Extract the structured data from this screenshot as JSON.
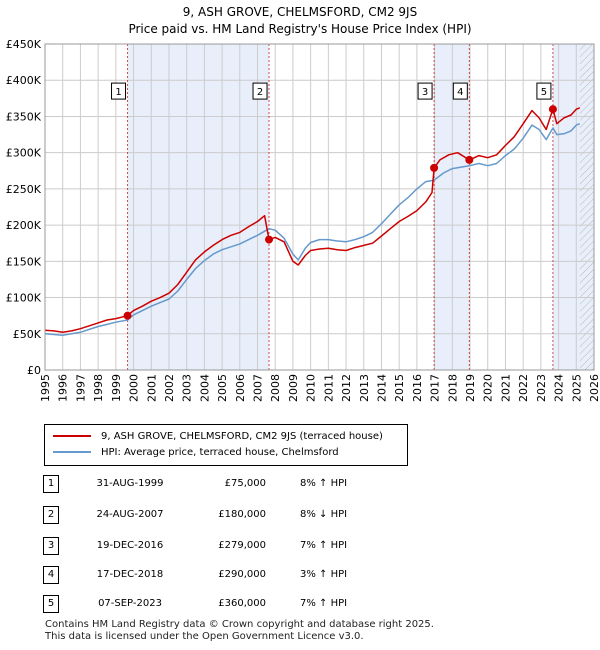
{
  "title_line1": "9, ASH GROVE, CHELMSFORD, CM2 9JS",
  "title_line2": "Price paid vs. HM Land Registry's House Price Index (HPI)",
  "chart_data": {
    "type": "line",
    "xlim": [
      1995,
      2026
    ],
    "ylim": [
      0,
      450000
    ],
    "x_ticks": [
      "1995",
      "1996",
      "1997",
      "1998",
      "1999",
      "2000",
      "2001",
      "2002",
      "2003",
      "2004",
      "2005",
      "2006",
      "2007",
      "2008",
      "2009",
      "2010",
      "2011",
      "2012",
      "2013",
      "2014",
      "2015",
      "2016",
      "2017",
      "2018",
      "2019",
      "2020",
      "2021",
      "2022",
      "2023",
      "2024",
      "2025",
      "2026"
    ],
    "y_ticks": [
      {
        "value": 0,
        "label": "£0"
      },
      {
        "value": 50000,
        "label": "£50K"
      },
      {
        "value": 100000,
        "label": "£100K"
      },
      {
        "value": 150000,
        "label": "£150K"
      },
      {
        "value": 200000,
        "label": "£200K"
      },
      {
        "value": 250000,
        "label": "£250K"
      },
      {
        "value": 300000,
        "label": "£300K"
      },
      {
        "value": 350000,
        "label": "£350K"
      },
      {
        "value": 400000,
        "label": "£400K"
      },
      {
        "value": 450000,
        "label": "£450K"
      }
    ],
    "shaded_ranges": [
      [
        1999.66,
        2007.65
      ],
      [
        2016.97,
        2018.96
      ],
      [
        2023.68,
        2026
      ]
    ],
    "future_hatch_from": 2025.2,
    "series": [
      {
        "name": "9, ASH GROVE, CHELMSFORD, CM2 9JS (terraced house)",
        "color": "#cc0000",
        "points": [
          [
            1995.0,
            55000
          ],
          [
            1995.5,
            54000
          ],
          [
            1996.0,
            52000
          ],
          [
            1996.5,
            54000
          ],
          [
            1997.0,
            57000
          ],
          [
            1997.5,
            61000
          ],
          [
            1998.0,
            65000
          ],
          [
            1998.5,
            69000
          ],
          [
            1999.0,
            71000
          ],
          [
            1999.66,
            75000
          ],
          [
            2000.0,
            82000
          ],
          [
            2000.5,
            88000
          ],
          [
            2001.0,
            95000
          ],
          [
            2001.5,
            100000
          ],
          [
            2002.0,
            106000
          ],
          [
            2002.5,
            118000
          ],
          [
            2003.0,
            135000
          ],
          [
            2003.5,
            152000
          ],
          [
            2004.0,
            163000
          ],
          [
            2004.5,
            172000
          ],
          [
            2005.0,
            180000
          ],
          [
            2005.5,
            186000
          ],
          [
            2006.0,
            190000
          ],
          [
            2006.5,
            198000
          ],
          [
            2007.0,
            205000
          ],
          [
            2007.4,
            213000
          ],
          [
            2007.65,
            180000
          ],
          [
            2008.0,
            183000
          ],
          [
            2008.5,
            177000
          ],
          [
            2009.0,
            150000
          ],
          [
            2009.3,
            145000
          ],
          [
            2009.7,
            158000
          ],
          [
            2010.0,
            165000
          ],
          [
            2010.5,
            167000
          ],
          [
            2011.0,
            168000
          ],
          [
            2011.5,
            166000
          ],
          [
            2012.0,
            165000
          ],
          [
            2012.5,
            169000
          ],
          [
            2013.0,
            172000
          ],
          [
            2013.5,
            175000
          ],
          [
            2014.0,
            185000
          ],
          [
            2014.5,
            195000
          ],
          [
            2015.0,
            205000
          ],
          [
            2015.5,
            212000
          ],
          [
            2016.0,
            220000
          ],
          [
            2016.5,
            232000
          ],
          [
            2016.85,
            245000
          ],
          [
            2016.97,
            279000
          ],
          [
            2017.3,
            290000
          ],
          [
            2017.8,
            297000
          ],
          [
            2018.3,
            300000
          ],
          [
            2018.96,
            290000
          ],
          [
            2019.5,
            296000
          ],
          [
            2020.0,
            293000
          ],
          [
            2020.5,
            297000
          ],
          [
            2021.0,
            310000
          ],
          [
            2021.5,
            322000
          ],
          [
            2022.0,
            340000
          ],
          [
            2022.5,
            358000
          ],
          [
            2022.9,
            348000
          ],
          [
            2023.3,
            332000
          ],
          [
            2023.68,
            360000
          ],
          [
            2023.9,
            340000
          ],
          [
            2024.3,
            348000
          ],
          [
            2024.7,
            352000
          ],
          [
            2025.0,
            360000
          ],
          [
            2025.2,
            362000
          ]
        ]
      },
      {
        "name": "HPI: Average price, terraced house, Chelmsford",
        "color": "#6699cc",
        "points": [
          [
            1995.0,
            50000
          ],
          [
            1995.5,
            49000
          ],
          [
            1996.0,
            48000
          ],
          [
            1996.5,
            50000
          ],
          [
            1997.0,
            52000
          ],
          [
            1997.5,
            56000
          ],
          [
            1998.0,
            60000
          ],
          [
            1998.5,
            63000
          ],
          [
            1999.0,
            66000
          ],
          [
            1999.66,
            69000
          ],
          [
            2000.0,
            76000
          ],
          [
            2000.5,
            82000
          ],
          [
            2001.0,
            88000
          ],
          [
            2001.5,
            93000
          ],
          [
            2002.0,
            98000
          ],
          [
            2002.5,
            109000
          ],
          [
            2003.0,
            125000
          ],
          [
            2003.5,
            140000
          ],
          [
            2004.0,
            151000
          ],
          [
            2004.5,
            160000
          ],
          [
            2005.0,
            166000
          ],
          [
            2005.5,
            170000
          ],
          [
            2006.0,
            174000
          ],
          [
            2006.5,
            180000
          ],
          [
            2007.0,
            186000
          ],
          [
            2007.65,
            195000
          ],
          [
            2008.0,
            193000
          ],
          [
            2008.5,
            182000
          ],
          [
            2009.0,
            160000
          ],
          [
            2009.3,
            152000
          ],
          [
            2009.7,
            168000
          ],
          [
            2010.0,
            176000
          ],
          [
            2010.5,
            180000
          ],
          [
            2011.0,
            180000
          ],
          [
            2011.5,
            178000
          ],
          [
            2012.0,
            177000
          ],
          [
            2012.5,
            180000
          ],
          [
            2013.0,
            184000
          ],
          [
            2013.5,
            190000
          ],
          [
            2014.0,
            202000
          ],
          [
            2014.5,
            215000
          ],
          [
            2015.0,
            228000
          ],
          [
            2015.5,
            238000
          ],
          [
            2016.0,
            250000
          ],
          [
            2016.5,
            260000
          ],
          [
            2016.97,
            262000
          ],
          [
            2017.5,
            272000
          ],
          [
            2018.0,
            278000
          ],
          [
            2018.96,
            282000
          ],
          [
            2019.5,
            285000
          ],
          [
            2020.0,
            282000
          ],
          [
            2020.5,
            285000
          ],
          [
            2021.0,
            296000
          ],
          [
            2021.5,
            305000
          ],
          [
            2022.0,
            320000
          ],
          [
            2022.5,
            338000
          ],
          [
            2022.9,
            332000
          ],
          [
            2023.3,
            318000
          ],
          [
            2023.68,
            334000
          ],
          [
            2023.9,
            325000
          ],
          [
            2024.3,
            326000
          ],
          [
            2024.7,
            330000
          ],
          [
            2025.0,
            338000
          ],
          [
            2025.2,
            340000
          ]
        ]
      }
    ],
    "markers": [
      {
        "label": "1",
        "x": 1999.66,
        "y": 75000
      },
      {
        "label": "2",
        "x": 2007.65,
        "y": 180000
      },
      {
        "label": "3",
        "x": 2016.97,
        "y": 279000
      },
      {
        "label": "4",
        "x": 2018.96,
        "y": 290000
      },
      {
        "label": "5",
        "x": 2023.68,
        "y": 360000
      }
    ],
    "marker_box_value": 385000,
    "marker_color": "#cc0000",
    "shade_color": "#e8eefa",
    "grid_color": "#cccccc"
  },
  "legend": {
    "items": [
      {
        "label": "9, ASH GROVE, CHELMSFORD, CM2 9JS (terraced house)",
        "color": "#cc0000"
      },
      {
        "label": "HPI: Average price, terraced house, Chelmsford",
        "color": "#6699cc"
      }
    ]
  },
  "sales": [
    {
      "num": "1",
      "date": "31-AUG-1999",
      "price": "£75,000",
      "hpi": "8% ↑ HPI"
    },
    {
      "num": "2",
      "date": "24-AUG-2007",
      "price": "£180,000",
      "hpi": "8% ↓ HPI"
    },
    {
      "num": "3",
      "date": "19-DEC-2016",
      "price": "£279,000",
      "hpi": "7% ↑ HPI"
    },
    {
      "num": "4",
      "date": "17-DEC-2018",
      "price": "£290,000",
      "hpi": "3% ↑ HPI"
    },
    {
      "num": "5",
      "date": "07-SEP-2023",
      "price": "£360,000",
      "hpi": "7% ↑ HPI"
    }
  ],
  "footer_line1": "Contains HM Land Registry data © Crown copyright and database right 2025.",
  "footer_line2": "This data is licensed under the Open Government Licence v3.0."
}
